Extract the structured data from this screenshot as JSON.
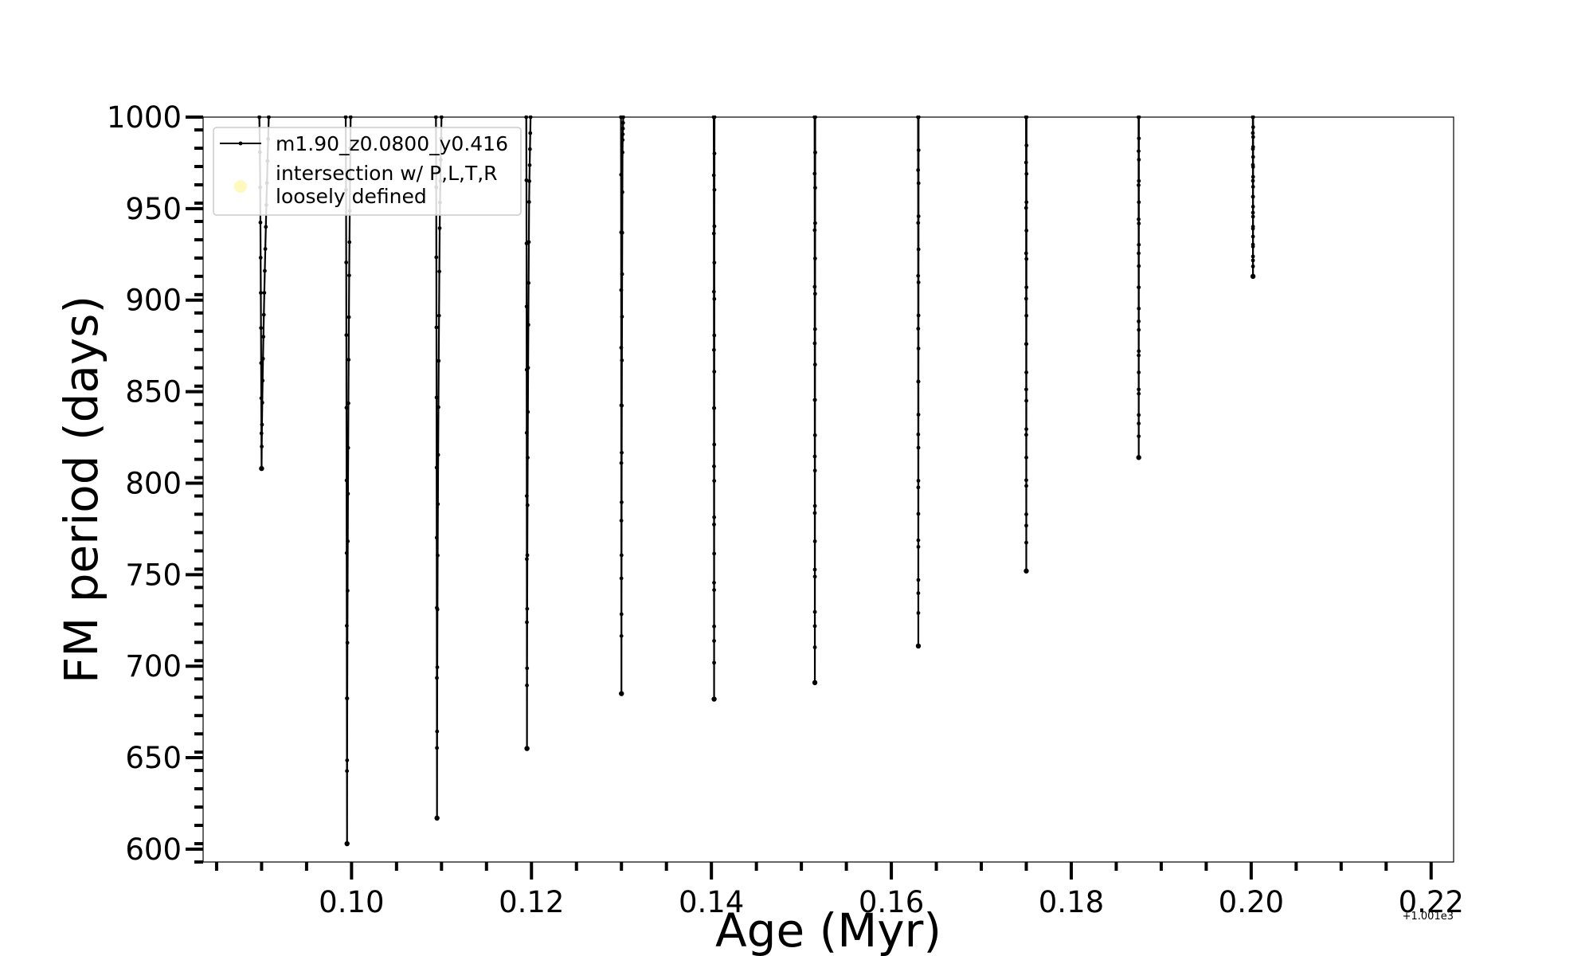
{
  "chart_data": {
    "type": "line",
    "xlabel": "Age (Myr)",
    "ylabel": "FM period (days)",
    "x_offset_label": "+1.001e3",
    "xlim": [
      0.0835,
      0.2225
    ],
    "ylim": [
      593,
      1000
    ],
    "x_ticks": [
      0.1,
      0.12,
      0.14,
      0.16,
      0.18,
      0.2,
      0.22
    ],
    "x_tick_labels": [
      "0.10",
      "0.12",
      "0.14",
      "0.16",
      "0.18",
      "0.20",
      "0.22"
    ],
    "y_ticks": [
      600,
      650,
      700,
      750,
      800,
      850,
      900,
      950,
      1000
    ],
    "y_tick_labels": [
      "600",
      "650",
      "700",
      "750",
      "800",
      "850",
      "900",
      "950",
      "1000"
    ],
    "grid": false,
    "legend_position": "top-left",
    "colors": {
      "line": "#000000",
      "intersection_marker": "#fff7b0"
    },
    "legend": [
      {
        "label": "m1.90_z0.0800_y0.416",
        "marker": "line-with-dots"
      },
      {
        "label": "intersection w/ P,L,T,R\nloosely defined",
        "marker": "circle"
      }
    ],
    "series": [
      {
        "name": "m1.90_z0.0800_y0.416",
        "pulses": [
          {
            "t": 0.09,
            "min": 808,
            "dl": 0.00025,
            "dr": 0.0008
          },
          {
            "t": 0.0995,
            "min": 603,
            "dl": 0.00015,
            "dr": 0.0004,
            "shoulder": 918
          },
          {
            "t": 0.1095,
            "min": 617,
            "dl": 0.00012,
            "dr": 0.0005,
            "shoulder": 944
          },
          {
            "t": 0.1195,
            "min": 655,
            "dl": 8e-05,
            "dr": 0.0004,
            "shoulder": 958
          },
          {
            "t": 0.13,
            "min": 685,
            "dl": 5e-05,
            "dr": 0.0002,
            "shoulder": 985
          },
          {
            "t": 0.1403,
            "min": 682,
            "dl": 4e-05,
            "dr": 4e-05
          },
          {
            "t": 0.1515,
            "min": 691,
            "dl": 3e-05,
            "dr": 4e-05
          },
          {
            "t": 0.163,
            "min": 711,
            "dl": 3e-05,
            "dr": 3e-05
          },
          {
            "t": 0.175,
            "min": 752,
            "dl": 3e-05,
            "dr": 3e-05
          },
          {
            "t": 0.1875,
            "min": 814,
            "dl": 2e-05,
            "dr": 2e-05
          },
          {
            "t": 0.2002,
            "min": 913,
            "dl": 2e-05,
            "dr": 2e-05
          }
        ]
      }
    ]
  }
}
